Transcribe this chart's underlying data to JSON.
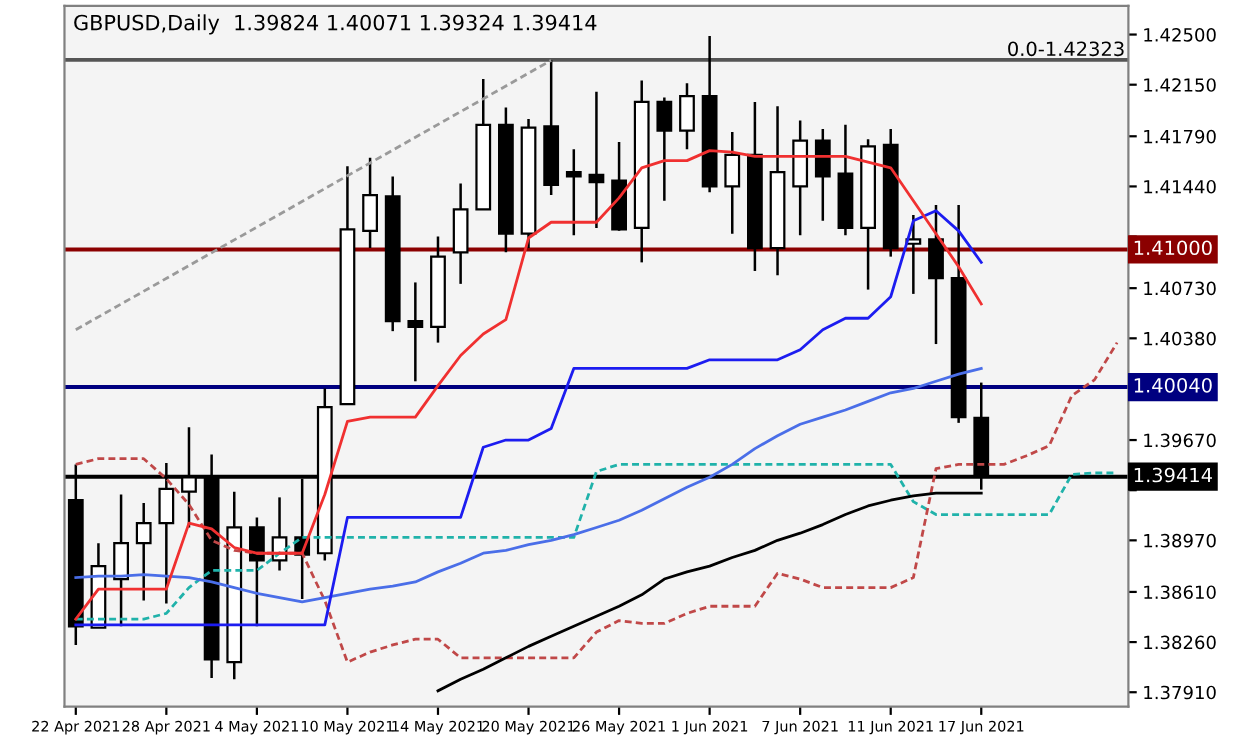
{
  "chart_data": {
    "type": "candlestick",
    "title": "GBPUSD,Daily  1.39824 1.40071 1.39324 1.39414",
    "categories": [
      "22 Apr 2021",
      null,
      null,
      null,
      "28 Apr 2021",
      null,
      null,
      null,
      "4 May 2021",
      null,
      null,
      null,
      "10 May 2021",
      null,
      null,
      null,
      "14 May 2021",
      null,
      null,
      null,
      "20 May 2021",
      null,
      null,
      null,
      "26 May 2021",
      null,
      null,
      null,
      "1 Jun 2021",
      null,
      null,
      null,
      "7 Jun 2021",
      null,
      null,
      null,
      "11 Jun 2021",
      null,
      null,
      null,
      "17 Jun 2021",
      null,
      null,
      null,
      null,
      null,
      null
    ],
    "ohlc": [
      [
        1.3925,
        1.395,
        1.3824,
        1.3837
      ],
      [
        1.3836,
        1.3895,
        1.3836,
        1.3879
      ],
      [
        1.387,
        1.3929,
        1.3837,
        1.3895
      ],
      [
        1.3895,
        1.3923,
        1.3855,
        1.3909
      ],
      [
        1.3909,
        1.3951,
        1.3853,
        1.3933
      ],
      [
        1.3931,
        1.3976,
        1.3906,
        1.3941
      ],
      [
        1.3941,
        1.3957,
        1.3801,
        1.3814
      ],
      [
        1.3812,
        1.3931,
        1.38,
        1.3906
      ],
      [
        1.3906,
        1.3913,
        1.3837,
        1.3883
      ],
      [
        1.3883,
        1.3927,
        1.3876,
        1.3899
      ],
      [
        1.3899,
        1.394,
        1.3856,
        1.3887
      ],
      [
        1.3888,
        1.4003,
        1.3883,
        1.399
      ],
      [
        1.3992,
        1.4158,
        1.3992,
        1.4114
      ],
      [
        1.4113,
        1.4164,
        1.4101,
        1.4138
      ],
      [
        1.4137,
        1.4151,
        1.4043,
        1.405
      ],
      [
        1.405,
        1.4077,
        1.4008,
        1.4046
      ],
      [
        1.4046,
        1.4109,
        1.4035,
        1.4095
      ],
      [
        1.4098,
        1.4146,
        1.4076,
        1.4128
      ],
      [
        1.4128,
        1.4219,
        1.4128,
        1.4187
      ],
      [
        1.4187,
        1.4199,
        1.4098,
        1.4111
      ],
      [
        1.4111,
        1.4191,
        1.4101,
        1.4185
      ],
      [
        1.4186,
        1.4232,
        1.4138,
        1.4145
      ],
      [
        1.4154,
        1.417,
        1.411,
        1.4151
      ],
      [
        1.4152,
        1.421,
        1.4115,
        1.4147
      ],
      [
        1.4148,
        1.4175,
        1.4113,
        1.4114
      ],
      [
        1.4115,
        1.4218,
        1.4091,
        1.4203
      ],
      [
        1.4203,
        1.4206,
        1.4134,
        1.4183
      ],
      [
        1.4183,
        1.4216,
        1.417,
        1.4207
      ],
      [
        1.4207,
        1.4249,
        1.414,
        1.4144
      ],
      [
        1.4144,
        1.4182,
        1.4111,
        1.4166
      ],
      [
        1.4166,
        1.4203,
        1.4085,
        1.4101
      ],
      [
        1.4101,
        1.42,
        1.4082,
        1.4154
      ],
      [
        1.4144,
        1.419,
        1.411,
        1.4176
      ],
      [
        1.4176,
        1.4184,
        1.412,
        1.4151
      ],
      [
        1.4153,
        1.4187,
        1.411,
        1.4115
      ],
      [
        1.4115,
        1.4177,
        1.4072,
        1.4172
      ],
      [
        1.4173,
        1.4184,
        1.4095,
        1.4101
      ],
      [
        1.4104,
        1.4124,
        1.4069,
        1.4107
      ],
      [
        1.4107,
        1.4131,
        1.4034,
        1.408
      ],
      [
        1.408,
        1.4131,
        1.3979,
        1.3983
      ],
      [
        1.39824,
        1.40071,
        1.39324,
        1.39414
      ],
      null,
      null,
      null,
      null,
      null,
      null
    ],
    "series": [
      {
        "type": "line",
        "color": "#9a9a9a",
        "line_style": "dashed",
        "values": [
          1.4044,
          null,
          null,
          null,
          null,
          null,
          null,
          null,
          null,
          null,
          null,
          null,
          null,
          null,
          null,
          null,
          null,
          null,
          null,
          null,
          null,
          1.4232,
          null,
          null,
          null,
          null,
          null,
          null,
          null,
          null,
          null,
          null,
          null,
          null,
          null,
          null,
          null,
          null,
          null,
          null,
          null,
          null,
          null,
          null,
          null,
          null,
          null
        ]
      },
      {
        "type": "line",
        "color": "#20b2aa",
        "line_style": "dashed",
        "values": [
          1.3842,
          1.3842,
          1.3842,
          1.3842,
          1.3846,
          1.3864,
          1.3876,
          1.3876,
          1.3876,
          1.3888,
          1.3899,
          1.3899,
          1.3899,
          1.3899,
          1.3899,
          1.3899,
          1.3899,
          1.3899,
          1.3899,
          1.3899,
          1.3899,
          1.3899,
          1.3899,
          1.3945,
          1.395,
          1.395,
          1.395,
          1.395,
          1.395,
          1.395,
          1.395,
          1.395,
          1.395,
          1.395,
          1.395,
          1.395,
          1.395,
          1.3924,
          1.3915,
          1.3915,
          1.3915,
          1.3915,
          1.3915,
          1.3915,
          1.3943,
          1.3944,
          1.3944
        ]
      },
      {
        "type": "line",
        "color": "#c04848",
        "line_style": "dashed",
        "values": [
          1.395,
          1.3954,
          1.3954,
          1.3954,
          1.394,
          1.3922,
          1.3897,
          1.389,
          1.3888,
          1.3888,
          1.3888,
          1.3855,
          1.3812,
          1.3819,
          1.3824,
          1.3828,
          1.3828,
          1.3815,
          1.3815,
          1.3815,
          1.3815,
          1.3815,
          1.3815,
          1.3833,
          1.3841,
          1.3839,
          1.3839,
          1.3846,
          1.3851,
          1.3851,
          1.3851,
          1.3874,
          1.387,
          1.3864,
          1.3864,
          1.3864,
          1.3864,
          1.3871,
          1.3947,
          1.395,
          1.395,
          1.395,
          1.3956,
          1.3963,
          1.3998,
          1.4009,
          1.4035
        ]
      },
      {
        "type": "line",
        "color": "#4a6ee8",
        "line_style": "solid",
        "values": [
          1.3871,
          1.3872,
          1.3872,
          1.3873,
          1.3872,
          1.3871,
          1.3868,
          1.3864,
          1.386,
          1.3857,
          1.3854,
          1.3857,
          1.386,
          1.3863,
          1.3865,
          1.3868,
          1.3875,
          1.3881,
          1.3888,
          1.389,
          1.3894,
          1.3897,
          1.3901,
          1.3906,
          1.3911,
          1.3918,
          1.3926,
          1.3934,
          1.3941,
          1.395,
          1.3961,
          1.397,
          1.3978,
          1.3983,
          1.3988,
          1.3994,
          1.4,
          1.4003,
          1.4008,
          1.4013,
          1.4017,
          null,
          null,
          null,
          null,
          null,
          null
        ]
      },
      {
        "type": "line",
        "color": "#000000",
        "line_style": "solid",
        "values": [
          null,
          null,
          null,
          null,
          null,
          null,
          null,
          null,
          null,
          null,
          null,
          null,
          null,
          null,
          null,
          null,
          1.3792,
          1.38,
          1.3807,
          1.3815,
          1.3823,
          1.383,
          1.3837,
          1.3844,
          1.3851,
          1.3859,
          1.387,
          1.3875,
          1.3879,
          1.3885,
          1.389,
          1.3897,
          1.3902,
          1.3908,
          1.3915,
          1.3921,
          1.3925,
          1.3928,
          1.393,
          1.393,
          1.393,
          null,
          null,
          null,
          null,
          null,
          null
        ]
      },
      {
        "type": "line",
        "color": "#1c1cf0",
        "line_style": "solid",
        "values": [
          1.3838,
          1.3838,
          1.3838,
          1.3838,
          1.3838,
          1.3838,
          1.3838,
          1.3838,
          1.3838,
          1.3838,
          1.3838,
          1.3838,
          1.3913,
          1.3913,
          1.3913,
          1.3913,
          1.3913,
          1.3913,
          1.3962,
          1.3967,
          1.3967,
          1.3975,
          1.4017,
          1.4017,
          1.4017,
          1.4017,
          1.4017,
          1.4017,
          1.4023,
          1.4023,
          1.4023,
          1.4023,
          1.403,
          1.4044,
          1.4052,
          1.4052,
          1.4067,
          1.412,
          1.4127,
          1.4113,
          1.4091,
          null,
          null,
          null,
          null,
          null,
          null
        ]
      },
      {
        "type": "line",
        "color": "#f03030",
        "line_style": "solid",
        "values": [
          1.3842,
          1.3863,
          1.3863,
          1.3863,
          1.3863,
          1.3909,
          1.3905,
          1.3892,
          1.3888,
          1.3888,
          1.3888,
          1.3929,
          1.398,
          1.3983,
          1.3983,
          1.3983,
          1.4005,
          1.4026,
          1.4041,
          1.4051,
          1.4108,
          1.4119,
          1.4119,
          1.4119,
          1.4136,
          1.4157,
          1.4162,
          1.4162,
          1.4169,
          1.4168,
          1.4165,
          1.4165,
          1.4165,
          1.4165,
          1.4165,
          1.4161,
          1.4157,
          1.4134,
          1.4111,
          1.4088,
          1.4062,
          null,
          null,
          null,
          null,
          null,
          null
        ]
      }
    ],
    "ref_lines": [
      {
        "axis": "y",
        "value": 1.42323,
        "color": "#555555"
      },
      {
        "axis": "y",
        "value": 1.41,
        "label": "1.41000",
        "color": "#8b0000"
      },
      {
        "axis": "y",
        "value": 1.4004,
        "label": "1.40040",
        "color": "#000080"
      },
      {
        "axis": "y",
        "value": 1.39414,
        "label": "1.39414",
        "color": "#000000"
      }
    ],
    "annotations": [
      {
        "text": "0.0-1.42323",
        "y": 1.42323
      }
    ],
    "ylim": [
      1.3781,
      1.427
    ],
    "yticks": [
      {
        "value": 1.425,
        "label": "1.42500"
      },
      {
        "value": 1.4215,
        "label": "1.42150"
      },
      {
        "value": 1.4179,
        "label": "1.41790"
      },
      {
        "value": 1.4144,
        "label": "1.41440"
      },
      {
        "value": 1.4109,
        "label": null
      },
      {
        "value": 1.4073,
        "label": "1.40730"
      },
      {
        "value": 1.4038,
        "label": "1.40380"
      },
      {
        "value": 1.3967,
        "label": "1.39670"
      },
      {
        "value": 1.3932,
        "label": null
      },
      {
        "value": 1.3897,
        "label": "1.38970"
      },
      {
        "value": 1.3861,
        "label": "1.38610"
      },
      {
        "value": 1.3826,
        "label": "1.38260"
      },
      {
        "value": 1.3791,
        "label": "1.37910"
      }
    ]
  }
}
